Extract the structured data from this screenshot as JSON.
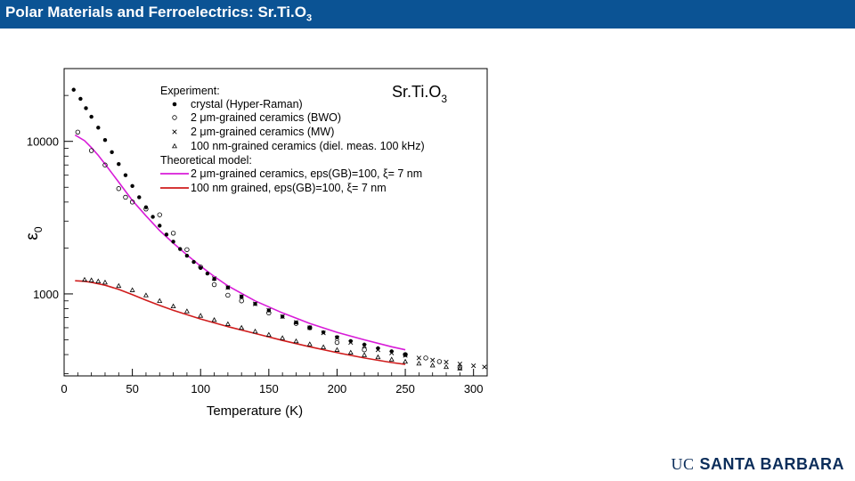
{
  "header": {
    "title_main": "Polar Materials and Ferroelectrics: Sr.Ti.O",
    "title_sub": "3",
    "bar_color": "#0b5394"
  },
  "footer": {
    "logo_uc": "UC",
    "logo_name": "SANTA BARBARA"
  },
  "chart_data": {
    "type": "scatter",
    "inset_label_main": "Sr.Ti.O",
    "inset_label_sub": "3",
    "xlabel": "Temperature (K)",
    "ylabel_main": "ε",
    "ylabel_sub": "0",
    "xlim": [
      0,
      310
    ],
    "ylim": [
      290,
      30000
    ],
    "yscale": "log",
    "x_ticks": [
      0,
      50,
      100,
      150,
      200,
      250,
      300
    ],
    "y_ticks": [
      1000,
      10000
    ],
    "y_tick_labels": [
      "1000",
      "10000"
    ],
    "grid": false,
    "legend_position": "top-right",
    "legend": {
      "experiment_header": "Experiment:",
      "theory_header": "Theoretical model:",
      "entries": [
        {
          "marker": "filled-circle",
          "label": "crystal (Hyper-Raman)"
        },
        {
          "marker": "open-circle",
          "label": "2 μm-grained ceramics (BWO)"
        },
        {
          "marker": "cross",
          "label": "2 μm-grained ceramics (MW)"
        },
        {
          "marker": "triangle",
          "label": "100 nm-grained ceramics (diel. meas. 100 kHz)"
        },
        {
          "marker": "line-magenta",
          "label": "2 μm-grained ceramics, eps(GB)=100, ξ= 7 nm"
        },
        {
          "marker": "line-red",
          "label": "100 nm grained, eps(GB)=100, ξ= 7 nm"
        }
      ]
    },
    "series": [
      {
        "name": "crystal (Hyper-Raman)",
        "marker": "filled-circle",
        "color": "#000000",
        "x": [
          7,
          12,
          16,
          20,
          25,
          30,
          35,
          40,
          45,
          50,
          55,
          60,
          65,
          70,
          75,
          80,
          85,
          90,
          95,
          100,
          105,
          110,
          120,
          130,
          140,
          150,
          160,
          170,
          180,
          190,
          200,
          210,
          220,
          230,
          240,
          250
        ],
        "y": [
          21800,
          19000,
          16500,
          14500,
          12300,
          10200,
          8500,
          7100,
          6000,
          5100,
          4300,
          3700,
          3200,
          2800,
          2450,
          2200,
          1970,
          1780,
          1620,
          1480,
          1360,
          1250,
          1100,
          960,
          860,
          780,
          710,
          650,
          600,
          560,
          520,
          490,
          465,
          440,
          420,
          400
        ]
      },
      {
        "name": "2 μm-grained ceramics (BWO)",
        "marker": "open-circle",
        "color": "#000000",
        "x": [
          10,
          20,
          30,
          40,
          45,
          50,
          60,
          70,
          80,
          90,
          100,
          110,
          120,
          130,
          150,
          170,
          180,
          200,
          220,
          250,
          265,
          275,
          290
        ],
        "y": [
          11500,
          8700,
          7000,
          4900,
          4300,
          4000,
          3600,
          3300,
          2500,
          1950,
          1500,
          1150,
          980,
          900,
          750,
          640,
          600,
          480,
          430,
          400,
          380,
          360,
          330
        ]
      },
      {
        "name": "2 μm-grained ceramics (MW)",
        "marker": "cross",
        "color": "#000000",
        "x": [
          110,
          120,
          130,
          140,
          150,
          160,
          170,
          180,
          190,
          200,
          210,
          220,
          230,
          240,
          250,
          260,
          270,
          280,
          290,
          300,
          308
        ],
        "y": [
          1260,
          1100,
          960,
          860,
          780,
          710,
          650,
          600,
          555,
          515,
          480,
          455,
          430,
          410,
          395,
          380,
          368,
          357,
          347,
          338,
          332
        ]
      },
      {
        "name": "100 nm-grained ceramics (diel. meas. 100 kHz)",
        "marker": "triangle",
        "color": "#000000",
        "x": [
          15,
          20,
          25,
          30,
          40,
          50,
          60,
          70,
          80,
          90,
          100,
          110,
          120,
          130,
          140,
          150,
          160,
          170,
          180,
          190,
          200,
          210,
          220,
          230,
          240,
          250,
          260,
          270,
          280,
          290
        ],
        "y": [
          1240,
          1230,
          1210,
          1190,
          1130,
          1060,
          980,
          900,
          830,
          770,
          720,
          675,
          635,
          600,
          568,
          540,
          514,
          490,
          468,
          448,
          430,
          413,
          398,
          385,
          372,
          360,
          350,
          340,
          332,
          325
        ]
      },
      {
        "name": "2 μm-grained ceramics, eps(GB)=100, ξ= 7 nm",
        "type": "line",
        "color": "#d81bd8",
        "x": [
          8,
          15,
          20,
          25,
          30,
          35,
          40,
          45,
          50,
          55,
          60,
          70,
          80,
          90,
          100,
          110,
          120,
          140,
          160,
          180,
          200,
          220,
          240,
          250
        ],
        "y": [
          11000,
          10100,
          9100,
          8100,
          7100,
          6200,
          5400,
          4700,
          4100,
          3650,
          3250,
          2600,
          2150,
          1800,
          1520,
          1300,
          1130,
          900,
          750,
          640,
          560,
          500,
          450,
          430
        ]
      },
      {
        "name": "100 nm grained, eps(GB)=100, ξ= 7 nm",
        "type": "line",
        "color": "#d01c1c",
        "x": [
          8,
          15,
          20,
          30,
          40,
          50,
          60,
          70,
          80,
          90,
          100,
          120,
          140,
          160,
          180,
          200,
          220,
          240,
          250
        ],
        "y": [
          1220,
          1210,
          1190,
          1140,
          1070,
          990,
          910,
          840,
          780,
          730,
          685,
          610,
          550,
          495,
          450,
          412,
          380,
          355,
          345
        ]
      }
    ]
  }
}
